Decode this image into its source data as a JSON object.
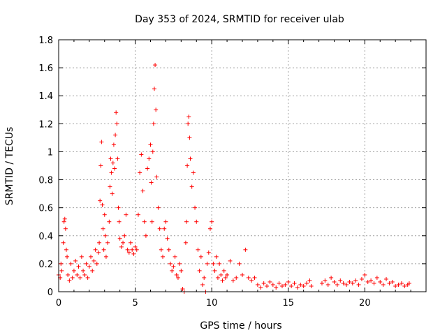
{
  "chart_data": {
    "type": "scatter",
    "title": "Day 353 of 2024, SRMTID for receiver ulab",
    "xlabel": "GPS time / hours",
    "ylabel": "SRMTID / TECUs",
    "xlim": [
      0,
      24
    ],
    "ylim": [
      0,
      1.8
    ],
    "xticks": [
      0,
      5,
      10,
      15,
      20
    ],
    "xtick_labels": [
      "0",
      "5",
      "10",
      "15",
      "20"
    ],
    "yticks": [
      0,
      0.2,
      0.4,
      0.6,
      0.8,
      1.0,
      1.2,
      1.4,
      1.6,
      1.8
    ],
    "ytick_labels": [
      "0",
      "0.2",
      "0.4",
      "0.6",
      "0.8",
      "1",
      "1.2",
      "1.4",
      "1.6",
      "1.8"
    ],
    "grid": true,
    "marker": "plus",
    "color": "#ff0000",
    "series": [
      {
        "name": "SRMTID",
        "points": [
          [
            0.0,
            0.12
          ],
          [
            0.1,
            0.1
          ],
          [
            0.15,
            0.2
          ],
          [
            0.2,
            0.15
          ],
          [
            0.3,
            0.35
          ],
          [
            0.35,
            0.5
          ],
          [
            0.4,
            0.52
          ],
          [
            0.45,
            0.45
          ],
          [
            0.5,
            0.3
          ],
          [
            0.55,
            0.25
          ],
          [
            0.6,
            0.12
          ],
          [
            0.7,
            0.08
          ],
          [
            0.8,
            0.2
          ],
          [
            0.9,
            0.1
          ],
          [
            1.0,
            0.15
          ],
          [
            1.1,
            0.22
          ],
          [
            1.2,
            0.12
          ],
          [
            1.3,
            0.18
          ],
          [
            1.4,
            0.1
          ],
          [
            1.5,
            0.25
          ],
          [
            1.6,
            0.15
          ],
          [
            1.7,
            0.12
          ],
          [
            1.8,
            0.2
          ],
          [
            1.9,
            0.1
          ],
          [
            2.0,
            0.18
          ],
          [
            2.1,
            0.25
          ],
          [
            2.2,
            0.15
          ],
          [
            2.3,
            0.22
          ],
          [
            2.4,
            0.3
          ],
          [
            2.5,
            0.2
          ],
          [
            2.6,
            0.28
          ],
          [
            2.65,
            0.35
          ],
          [
            2.7,
            0.65
          ],
          [
            2.75,
            0.9
          ],
          [
            2.8,
            1.07
          ],
          [
            2.85,
            0.62
          ],
          [
            2.9,
            0.45
          ],
          [
            2.95,
            0.3
          ],
          [
            3.0,
            0.55
          ],
          [
            3.05,
            0.4
          ],
          [
            3.1,
            0.25
          ],
          [
            3.2,
            0.35
          ],
          [
            3.3,
            0.5
          ],
          [
            3.35,
            0.75
          ],
          [
            3.4,
            0.95
          ],
          [
            3.45,
            0.85
          ],
          [
            3.5,
            0.7
          ],
          [
            3.55,
            0.92
          ],
          [
            3.6,
            1.05
          ],
          [
            3.65,
            0.88
          ],
          [
            3.7,
            1.12
          ],
          [
            3.75,
            1.28
          ],
          [
            3.8,
            1.2
          ],
          [
            3.85,
            0.95
          ],
          [
            3.9,
            0.6
          ],
          [
            3.95,
            0.5
          ],
          [
            4.0,
            0.38
          ],
          [
            4.1,
            0.32
          ],
          [
            4.2,
            0.35
          ],
          [
            4.3,
            0.4
          ],
          [
            4.4,
            0.55
          ],
          [
            4.5,
            0.3
          ],
          [
            4.6,
            0.28
          ],
          [
            4.7,
            0.35
          ],
          [
            4.8,
            0.3
          ],
          [
            4.9,
            0.27
          ],
          [
            5.0,
            0.32
          ],
          [
            5.1,
            0.3
          ],
          [
            5.2,
            0.55
          ],
          [
            5.3,
            0.85
          ],
          [
            5.4,
            0.98
          ],
          [
            5.5,
            0.72
          ],
          [
            5.6,
            0.5
          ],
          [
            5.7,
            0.4
          ],
          [
            5.8,
            0.88
          ],
          [
            5.9,
            0.95
          ],
          [
            6.0,
            1.05
          ],
          [
            6.05,
            0.78
          ],
          [
            6.1,
            0.5
          ],
          [
            6.15,
            1.0
          ],
          [
            6.2,
            1.2
          ],
          [
            6.25,
            1.45
          ],
          [
            6.3,
            1.62
          ],
          [
            6.35,
            1.3
          ],
          [
            6.4,
            0.82
          ],
          [
            6.5,
            0.6
          ],
          [
            6.6,
            0.45
          ],
          [
            6.7,
            0.3
          ],
          [
            6.8,
            0.25
          ],
          [
            6.9,
            0.45
          ],
          [
            7.0,
            0.5
          ],
          [
            7.1,
            0.38
          ],
          [
            7.2,
            0.3
          ],
          [
            7.3,
            0.2
          ],
          [
            7.4,
            0.15
          ],
          [
            7.5,
            0.18
          ],
          [
            7.6,
            0.25
          ],
          [
            7.7,
            0.12
          ],
          [
            7.8,
            0.1
          ],
          [
            7.9,
            0.2
          ],
          [
            8.0,
            0.15
          ],
          [
            8.1,
            0.02
          ],
          [
            8.2,
            0.0
          ],
          [
            8.3,
            0.35
          ],
          [
            8.35,
            0.5
          ],
          [
            8.4,
            0.9
          ],
          [
            8.45,
            1.2
          ],
          [
            8.5,
            1.25
          ],
          [
            8.55,
            1.1
          ],
          [
            8.6,
            0.95
          ],
          [
            8.7,
            0.75
          ],
          [
            8.8,
            0.85
          ],
          [
            8.9,
            0.6
          ],
          [
            9.0,
            0.5
          ],
          [
            9.1,
            0.3
          ],
          [
            9.2,
            0.15
          ],
          [
            9.3,
            0.25
          ],
          [
            9.4,
            0.05
          ],
          [
            9.5,
            0.1
          ],
          [
            9.6,
            0.0
          ],
          [
            9.7,
            0.2
          ],
          [
            9.8,
            0.28
          ],
          [
            9.9,
            0.45
          ],
          [
            10.0,
            0.5
          ],
          [
            10.1,
            0.2
          ],
          [
            10.2,
            0.15
          ],
          [
            10.3,
            0.25
          ],
          [
            10.4,
            0.1
          ],
          [
            10.5,
            0.2
          ],
          [
            10.6,
            0.12
          ],
          [
            10.7,
            0.08
          ],
          [
            10.8,
            0.15
          ],
          [
            10.9,
            0.1
          ],
          [
            11.0,
            0.12
          ],
          [
            11.2,
            0.22
          ],
          [
            11.4,
            0.08
          ],
          [
            11.6,
            0.1
          ],
          [
            11.8,
            0.2
          ],
          [
            12.0,
            0.12
          ],
          [
            12.2,
            0.3
          ],
          [
            12.4,
            0.1
          ],
          [
            12.6,
            0.08
          ],
          [
            12.8,
            0.1
          ],
          [
            13.0,
            0.05
          ],
          [
            13.2,
            0.03
          ],
          [
            13.4,
            0.06
          ],
          [
            13.6,
            0.04
          ],
          [
            13.8,
            0.07
          ],
          [
            14.0,
            0.05
          ],
          [
            14.2,
            0.03
          ],
          [
            14.4,
            0.06
          ],
          [
            14.6,
            0.04
          ],
          [
            14.8,
            0.05
          ],
          [
            15.0,
            0.07
          ],
          [
            15.2,
            0.04
          ],
          [
            15.4,
            0.06
          ],
          [
            15.6,
            0.03
          ],
          [
            15.8,
            0.05
          ],
          [
            16.0,
            0.04
          ],
          [
            16.2,
            0.06
          ],
          [
            16.4,
            0.08
          ],
          [
            16.5,
            0.04
          ],
          [
            17.2,
            0.06
          ],
          [
            17.4,
            0.08
          ],
          [
            17.6,
            0.05
          ],
          [
            17.8,
            0.1
          ],
          [
            18.0,
            0.07
          ],
          [
            18.2,
            0.05
          ],
          [
            18.4,
            0.08
          ],
          [
            18.6,
            0.06
          ],
          [
            18.8,
            0.05
          ],
          [
            19.0,
            0.07
          ],
          [
            19.2,
            0.06
          ],
          [
            19.4,
            0.08
          ],
          [
            19.6,
            0.05
          ],
          [
            19.8,
            0.09
          ],
          [
            20.0,
            0.12
          ],
          [
            20.2,
            0.07
          ],
          [
            20.4,
            0.08
          ],
          [
            20.6,
            0.06
          ],
          [
            20.8,
            0.1
          ],
          [
            21.0,
            0.07
          ],
          [
            21.2,
            0.05
          ],
          [
            21.4,
            0.09
          ],
          [
            21.6,
            0.06
          ],
          [
            21.8,
            0.07
          ],
          [
            22.0,
            0.04
          ],
          [
            22.2,
            0.05
          ],
          [
            22.4,
            0.06
          ],
          [
            22.6,
            0.04
          ],
          [
            22.8,
            0.05
          ],
          [
            22.9,
            0.06
          ]
        ]
      }
    ]
  }
}
